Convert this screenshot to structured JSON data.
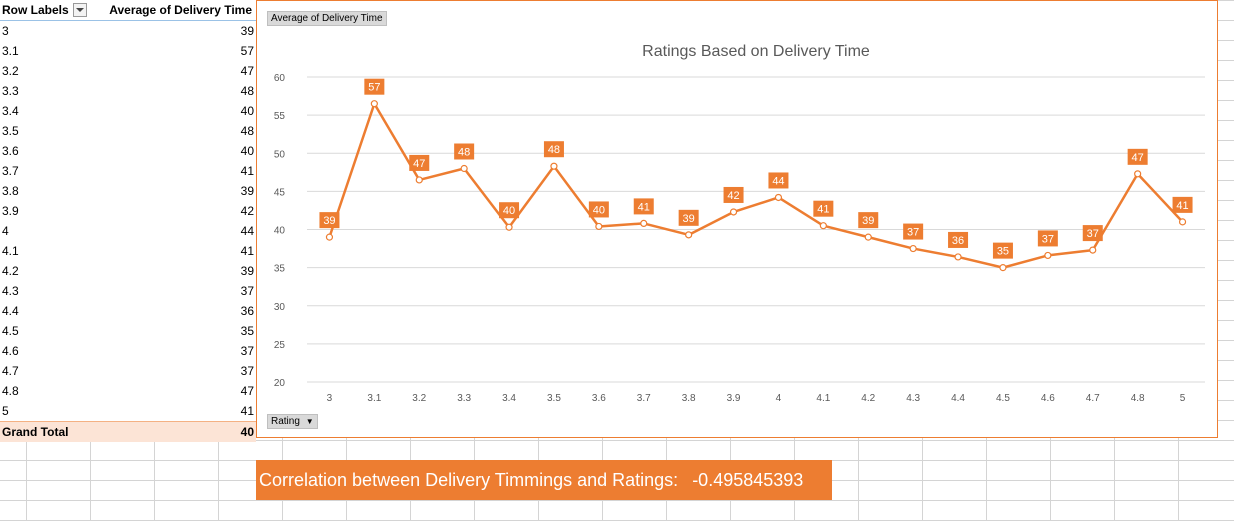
{
  "pivot": {
    "row_labels_header": "Row Labels",
    "value_header": "Average of Delivery Time",
    "rows": [
      {
        "label": "3",
        "value": "39"
      },
      {
        "label": "3.1",
        "value": "57"
      },
      {
        "label": "3.2",
        "value": "47"
      },
      {
        "label": "3.3",
        "value": "48"
      },
      {
        "label": "3.4",
        "value": "40"
      },
      {
        "label": "3.5",
        "value": "48"
      },
      {
        "label": "3.6",
        "value": "40"
      },
      {
        "label": "3.7",
        "value": "41"
      },
      {
        "label": "3.8",
        "value": "39"
      },
      {
        "label": "3.9",
        "value": "42"
      },
      {
        "label": "4",
        "value": "44"
      },
      {
        "label": "4.1",
        "value": "41"
      },
      {
        "label": "4.2",
        "value": "39"
      },
      {
        "label": "4.3",
        "value": "37"
      },
      {
        "label": "4.4",
        "value": "36"
      },
      {
        "label": "4.5",
        "value": "35"
      },
      {
        "label": "4.6",
        "value": "37"
      },
      {
        "label": "4.7",
        "value": "37"
      },
      {
        "label": "4.8",
        "value": "47"
      },
      {
        "label": "5",
        "value": "41"
      }
    ],
    "grand_total_label": "Grand Total",
    "grand_total_value": "40"
  },
  "chart_buttons": {
    "values_field": "Average of Delivery Time",
    "axis_field": "Rating"
  },
  "chart_data": {
    "type": "line",
    "title": "Ratings Based on Delivery Time",
    "xlabel": "",
    "ylabel": "",
    "categories": [
      "3",
      "3.1",
      "3.2",
      "3.3",
      "3.4",
      "3.5",
      "3.6",
      "3.7",
      "3.8",
      "3.9",
      "4",
      "4.1",
      "4.2",
      "4.3",
      "4.4",
      "4.5",
      "4.6",
      "4.7",
      "4.8",
      "5"
    ],
    "values": [
      39.0,
      56.5,
      46.5,
      48.0,
      40.3,
      48.3,
      40.4,
      40.8,
      39.3,
      42.3,
      44.2,
      40.5,
      39.0,
      37.5,
      36.4,
      35.0,
      36.6,
      37.3,
      47.3,
      41.0
    ],
    "data_labels": [
      "39",
      "57",
      "47",
      "48",
      "40",
      "48",
      "40",
      "41",
      "39",
      "42",
      "44",
      "41",
      "39",
      "37",
      "36",
      "35",
      "37",
      "37",
      "47",
      "41"
    ],
    "ylim": [
      20,
      60
    ],
    "yticks": [
      "20",
      "25",
      "30",
      "35",
      "40",
      "45",
      "50",
      "55",
      "60"
    ],
    "grid": true,
    "color": "#ed7d31"
  },
  "correlation": {
    "label": "Correlation between Delivery Timmings and Ratings:",
    "value": "-0.495845393"
  }
}
